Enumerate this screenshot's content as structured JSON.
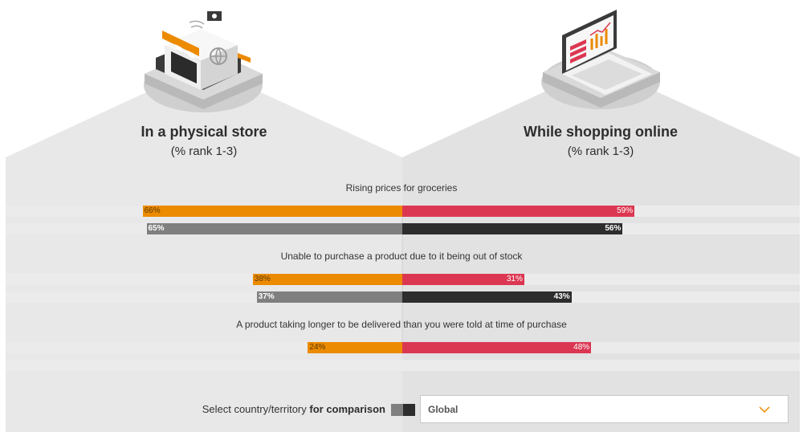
{
  "left_panel": {
    "title": "In a physical store",
    "subtitle": "(% rank 1-3)"
  },
  "right_panel": {
    "title": "While shopping online",
    "subtitle": "(% rank 1-3)"
  },
  "icons": {
    "left": "storefront-icon",
    "right": "laptop-ecommerce-icon"
  },
  "colors": {
    "store_selected": "#ec8a00",
    "online_selected": "#dc3752",
    "store_comparison": "#7f7f7f",
    "online_comparison": "#2d2d2d",
    "band": "#ebebeb",
    "background_panel": "#e8e8e8"
  },
  "chart_data": {
    "type": "bar",
    "orientation": "diverging-horizontal",
    "categories": [
      "Rising prices for groceries",
      "Unable to purchase a product due to it being out of stock",
      "A product taking longer to be delivered than you were told at time of purchase"
    ],
    "series": [
      {
        "side": "left",
        "role": "selected",
        "values": [
          66,
          38,
          24
        ]
      },
      {
        "side": "right",
        "role": "selected",
        "values": [
          59,
          31,
          48
        ]
      },
      {
        "side": "left",
        "role": "comparison",
        "values": [
          65,
          37,
          null
        ]
      },
      {
        "side": "right",
        "role": "comparison",
        "values": [
          56,
          43,
          null
        ]
      }
    ],
    "value_suffix": "%",
    "xlim": [
      0,
      100
    ]
  },
  "controls": {
    "legend_label_prefix": "Select country/territory",
    "legend_label_bold": "for comparison",
    "select_value": "Global"
  }
}
